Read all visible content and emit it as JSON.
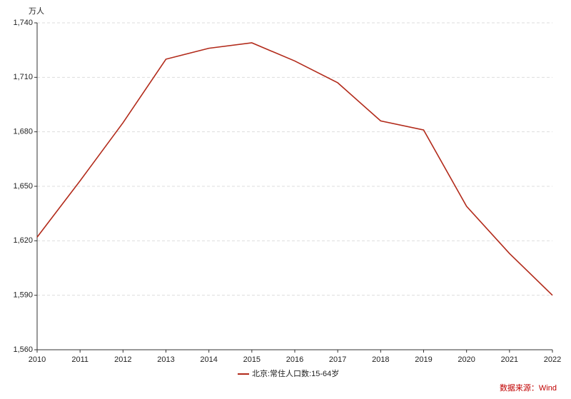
{
  "chart_data": {
    "type": "line",
    "y_unit": "万人",
    "x": [
      2010,
      2011,
      2012,
      2013,
      2014,
      2015,
      2016,
      2017,
      2018,
      2019,
      2020,
      2021,
      2022
    ],
    "xlim": [
      2010,
      2022
    ],
    "xticks": [
      2010,
      2011,
      2012,
      2013,
      2014,
      2015,
      2016,
      2017,
      2018,
      2019,
      2020,
      2021,
      2022
    ],
    "ylim": [
      1560,
      1740
    ],
    "yticks": [
      {
        "value": 1560,
        "label": "1,560"
      },
      {
        "value": 1590,
        "label": "1,590"
      },
      {
        "value": 1620,
        "label": "1,620"
      },
      {
        "value": 1650,
        "label": "1,650"
      },
      {
        "value": 1680,
        "label": "1,680"
      },
      {
        "value": 1710,
        "label": "1,710"
      },
      {
        "value": 1740,
        "label": "1,740"
      }
    ],
    "grid": true,
    "legend": "bottom",
    "series": [
      {
        "name": "北京:常住人口数:15-64岁",
        "color": "#b22a1a",
        "values": [
          1622,
          1653,
          1685,
          1720,
          1726,
          1729,
          1719,
          1707,
          1686,
          1681,
          1639,
          1613,
          1590
        ]
      }
    ],
    "source": "数据来源：Wind"
  }
}
